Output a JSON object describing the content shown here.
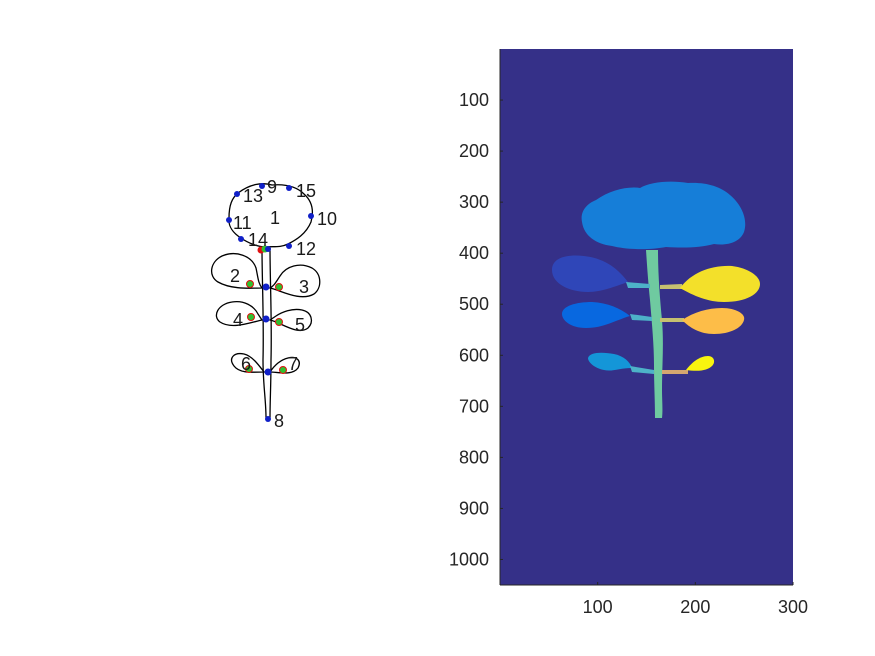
{
  "colors": {
    "background": "#353088",
    "stem": "#6fcaa0",
    "top_blob": "#167ed8",
    "leaf_l1": "#2f46b8",
    "leaf_l2": "#0868e0",
    "leaf_l3": "#1496d8",
    "leaf_r1": "#f3e02a",
    "leaf_r2": "#fdbd48",
    "leaf_r3": "#f9f40f",
    "keypoint_blue": "#1020c8",
    "keypoint_green": "#30c030",
    "keypoint_red": "#e01010"
  },
  "left_panel": {
    "labels": [
      "1",
      "2",
      "3",
      "4",
      "5",
      "6",
      "7",
      "8",
      "9",
      "10",
      "11",
      "12",
      "13",
      "14",
      "15"
    ]
  },
  "right_panel": {
    "chart_data": {
      "type": "heatmap",
      "xlim": [
        0,
        300
      ],
      "ylim": [
        0,
        1050
      ],
      "y_reversed": true,
      "x_ticks": [
        "100",
        "200",
        "300"
      ],
      "y_ticks": [
        "100",
        "200",
        "300",
        "400",
        "500",
        "600",
        "700",
        "800",
        "900",
        "1000"
      ],
      "x_tick_values": [
        100,
        200,
        300
      ],
      "y_tick_values": [
        100,
        200,
        300,
        400,
        500,
        600,
        700,
        800,
        900,
        1000
      ],
      "grid": false
    }
  }
}
